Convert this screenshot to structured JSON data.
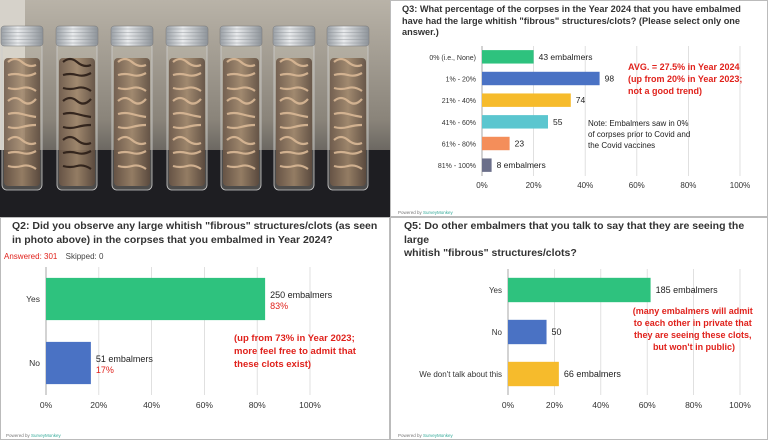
{
  "q3": {
    "title": "Q3: What percentage of the corpses in the Year 2024 that you have embalmed have had the large whitish \"fibrous\" structures/clots? (Please select only one answer.)",
    "annotation_lines": [
      "AVG. = 27.5% in Year 2024",
      "(up from 20% in Year 2023;",
      "not a good trend)"
    ],
    "note_lines": [
      "Note:  Embalmers saw in 0%",
      "of corpses prior to Covid and",
      "the Covid vaccines"
    ],
    "brand": "Powered by",
    "brand_name": "SurveyMonkey"
  },
  "q2": {
    "title_lines": [
      "Q2: Did you observe any large whitish \"fibrous\" structures/clots (as seen",
      "in photo above) in the corpses that you embalmed in Year 2024?"
    ],
    "answered": "Answered: 301",
    "skipped": "Skipped: 0",
    "annotation_lines": [
      "(up from 73% in Year 2023;",
      "more feel free to admit that",
      "these clots exist)"
    ],
    "brand": "Powered by",
    "brand_name": "SurveyMonkey"
  },
  "q5": {
    "title_lines": [
      "Q5: Do other embalmers that you talk to say that they are seeing the large",
      "whitish \"fibrous\" structures/clots?"
    ],
    "annotation_lines": [
      "(many embalmers will admit",
      "to each other in private that",
      "they are seeing these clots,",
      "but won't in public)"
    ],
    "brand": "Powered by",
    "brand_name": "SurveyMonkey"
  },
  "chart_data": [
    {
      "type": "bar",
      "orientation": "horizontal",
      "categories": [
        "0% (i.e., None)",
        "1% - 20%",
        "21% - 40%",
        "41% - 60%",
        "61% - 80%",
        "81% - 100%"
      ],
      "values": [
        43,
        98,
        74,
        55,
        23,
        8
      ],
      "bar_labels": [
        "43 embalmers",
        "98",
        "74",
        "55",
        "23",
        "8 embalmers"
      ],
      "colors": [
        "#2ec27e",
        "#4a72c4",
        "#f6bb2c",
        "#5bc6cf",
        "#f48e5a",
        "#6b6f8a"
      ],
      "xticks": [
        "0%",
        "20%",
        "40%",
        "60%",
        "80%",
        "100%"
      ],
      "xlim": [
        0,
        215
      ],
      "grid": true
    },
    {
      "type": "bar",
      "orientation": "horizontal",
      "categories": [
        "Yes",
        "No"
      ],
      "values": [
        83,
        17
      ],
      "bar_labels": [
        "250 embalmers",
        "51 embalmers"
      ],
      "pct_labels": [
        "83%",
        "17%"
      ],
      "colors": [
        "#2ec27e",
        "#4a72c4"
      ],
      "xticks": [
        "0%",
        "20%",
        "40%",
        "60%",
        "80%",
        "100%"
      ],
      "xlim": [
        0,
        100
      ],
      "grid": true
    },
    {
      "type": "bar",
      "orientation": "horizontal",
      "categories": [
        "Yes",
        "No",
        "We don't talk about this"
      ],
      "values": [
        185,
        50,
        66
      ],
      "bar_labels": [
        "185 embalmers",
        "50",
        "66 embalmers"
      ],
      "colors": [
        "#2ec27e",
        "#4a72c4",
        "#f6bb2c"
      ],
      "xticks": [
        "0%",
        "20%",
        "40%",
        "60%",
        "80%",
        "100%"
      ],
      "xlim": [
        0,
        301
      ],
      "grid": true
    }
  ]
}
